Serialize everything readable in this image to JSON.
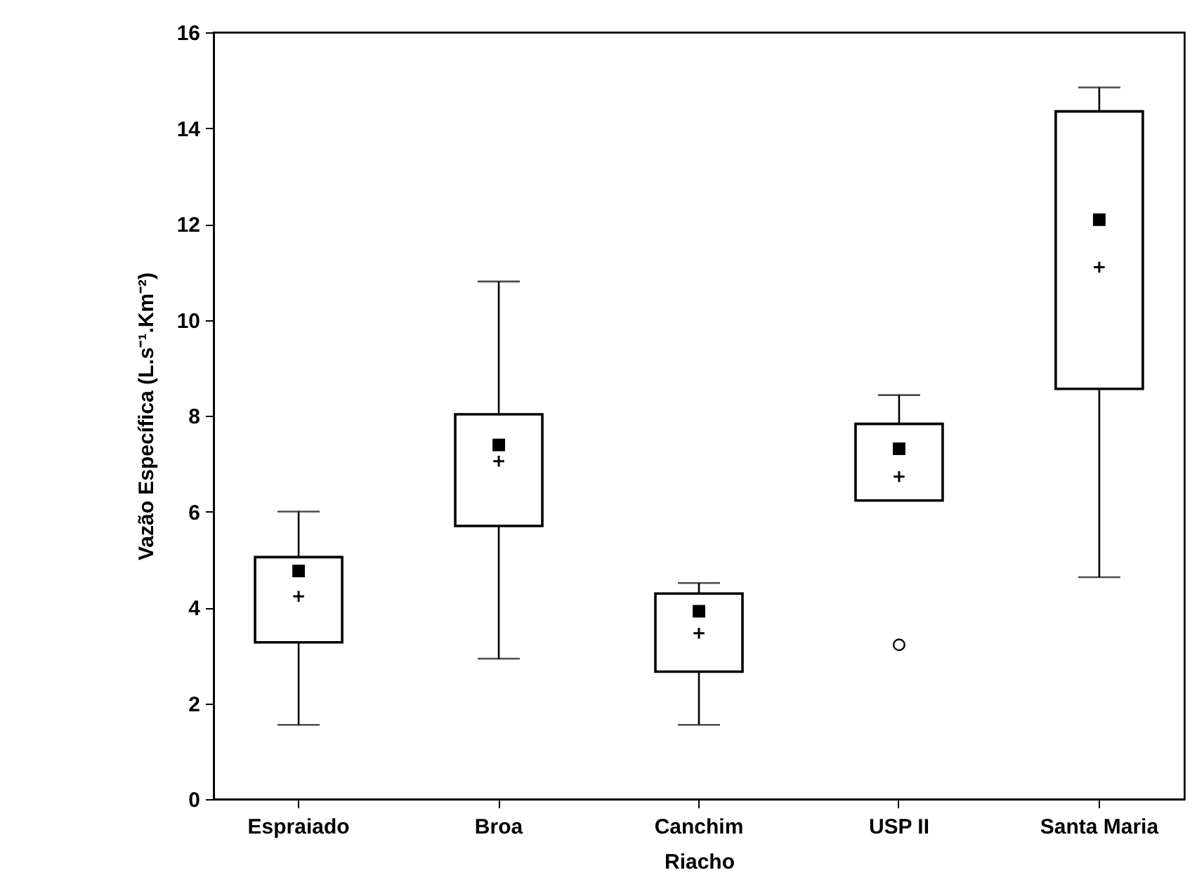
{
  "chart_data": {
    "type": "box",
    "xlabel": "Riacho",
    "ylabel": "Vazão Específica (L.s⁻¹.Km⁻²)",
    "categories": [
      "Espraiado",
      "Broa",
      "Canchim",
      "USP II",
      "Santa Maria"
    ],
    "boxes": [
      {
        "low": 1.55,
        "q1": 3.27,
        "median": 4.76,
        "q3": 5.05,
        "high": 6.0,
        "mean": 4.23
      },
      {
        "low": 2.93,
        "q1": 5.7,
        "median": 7.39,
        "q3": 8.03,
        "high": 10.8,
        "mean": 7.05
      },
      {
        "low": 1.55,
        "q1": 2.66,
        "median": 3.92,
        "q3": 4.29,
        "high": 4.51,
        "mean": 3.46
      },
      {
        "low": 6.23,
        "q1": 6.23,
        "median": 7.31,
        "q3": 7.83,
        "high": 8.43,
        "mean": 6.73,
        "outliers": [
          3.22
        ]
      },
      {
        "low": 4.63,
        "q1": 8.56,
        "median": 12.09,
        "q3": 14.35,
        "high": 14.85,
        "mean": 11.1
      }
    ],
    "ylim": [
      0,
      16
    ],
    "yticks": [
      0,
      2,
      4,
      6,
      8,
      10,
      12,
      14,
      16
    ],
    "grid": false
  }
}
